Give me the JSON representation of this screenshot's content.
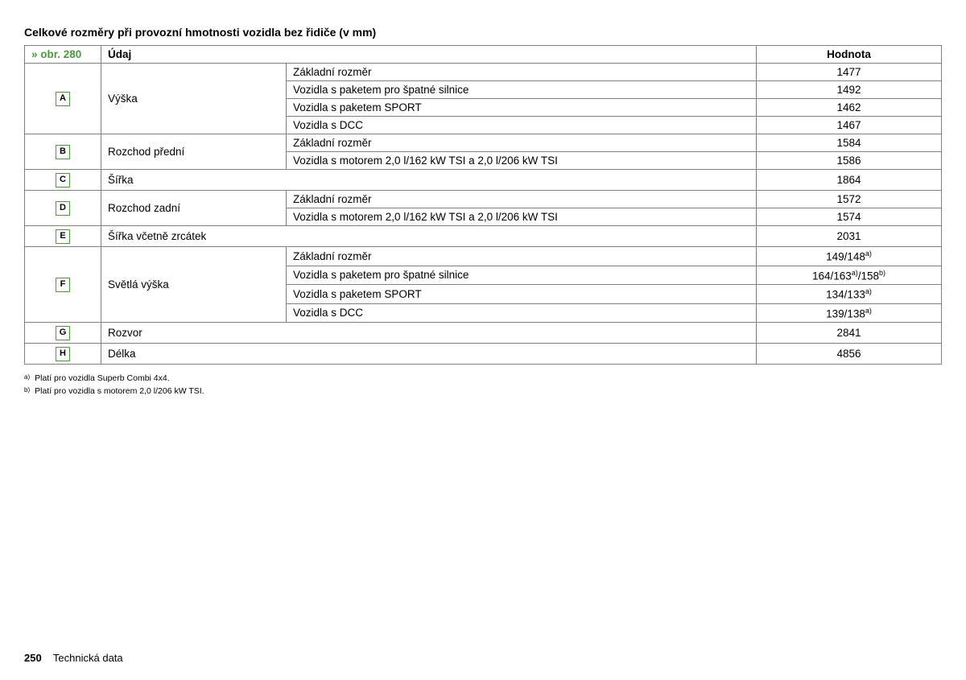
{
  "title": "Celkové rozměry při provozní hmotnosti vozidla bez řidiče (v mm)",
  "refLink": "» obr. 280",
  "headers": {
    "udaj": "Údaj",
    "hodnota": "Hodnota"
  },
  "groups": [
    {
      "letter": "A",
      "label": "Výška",
      "rows": [
        {
          "detail": "Základní rozměr",
          "value": "1477"
        },
        {
          "detail": "Vozidla s paketem pro špatné silnice",
          "value": "1492"
        },
        {
          "detail": "Vozidla s paketem SPORT",
          "value": "1462"
        },
        {
          "detail": "Vozidla s DCC",
          "value": "1467"
        }
      ]
    },
    {
      "letter": "B",
      "label": "Rozchod přední",
      "rows": [
        {
          "detail": "Základní rozměr",
          "value": "1584"
        },
        {
          "detail": "Vozidla s motorem 2,0 l/162 kW TSI a 2,0 l/206 kW TSI",
          "value": "1586"
        }
      ]
    },
    {
      "letter": "C",
      "label": "Šířka",
      "rows": [
        {
          "detail": null,
          "value": "1864"
        }
      ]
    },
    {
      "letter": "D",
      "label": "Rozchod zadní",
      "rows": [
        {
          "detail": "Základní rozměr",
          "value": "1572"
        },
        {
          "detail": "Vozidla s motorem 2,0 l/162 kW TSI a 2,0 l/206 kW TSI",
          "value": "1574"
        }
      ]
    },
    {
      "letter": "E",
      "label": "Šířka včetně zrcátek",
      "rows": [
        {
          "detail": null,
          "value": "2031"
        }
      ]
    },
    {
      "letter": "F",
      "label": "Světlá výška",
      "rows": [
        {
          "detail": "Základní rozměr",
          "value": "149/148",
          "sup": "a)"
        },
        {
          "detail": "Vozidla s paketem pro špatné silnice",
          "value": "164/163",
          "sup": "a)",
          "value2": "/158",
          "sup2": "b)"
        },
        {
          "detail": "Vozidla s paketem SPORT",
          "value": "134/133",
          "sup": "a)"
        },
        {
          "detail": "Vozidla s DCC",
          "value": "139/138",
          "sup": "a)"
        }
      ]
    },
    {
      "letter": "G",
      "label": "Rozvor",
      "rows": [
        {
          "detail": null,
          "value": "2841"
        }
      ]
    },
    {
      "letter": "H",
      "label": "Délka",
      "rows": [
        {
          "detail": null,
          "value": "4856"
        }
      ]
    }
  ],
  "footnotes": [
    {
      "mark": "a)",
      "text": "Platí pro vozidla Superb Combi 4x4."
    },
    {
      "mark": "b)",
      "text": "Platí pro vozidla s motorem 2,0 l/206 kW TSI."
    }
  ],
  "footer": {
    "page": "250",
    "section": "Technická data"
  },
  "colors": {
    "accent": "#4b9b3d",
    "border": "#808080",
    "text": "#000000",
    "background": "#ffffff"
  }
}
